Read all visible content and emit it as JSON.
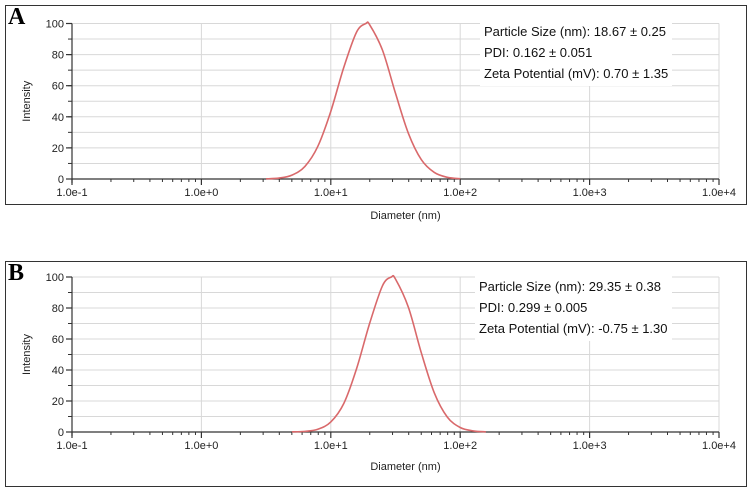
{
  "chart_data": [
    {
      "type": "line",
      "panel_label": "A",
      "xlabel": "Diameter (nm)",
      "ylabel": "Intensity",
      "xscale": "log",
      "xlim": [
        0.1,
        10000
      ],
      "ylim": [
        0,
        100
      ],
      "xticks": [
        "1.0e-1",
        "1.0e+0",
        "1.0e+1",
        "1.0e+2",
        "1.0e+3",
        "1.0e+4"
      ],
      "yticks": [
        "0",
        "20",
        "40",
        "60",
        "80",
        "100"
      ],
      "grid": true,
      "line_color": "#d9696b",
      "annotations": [
        "Particle Size (nm): 18.67 ± 0.25",
        "PDI: 0.162 ± 0.051",
        "Zeta Potential (mV): 0.70 ± 1.35"
      ],
      "series": [
        {
          "x": [
            3.16,
            3.98,
            5.01,
            6.31,
            7.94,
            10,
            12.6,
            15.8,
            18.67,
            20,
            25.1,
            31.6,
            39.8,
            50.1,
            63.1,
            79.4,
            100
          ],
          "y": [
            0.1,
            0.6,
            2.5,
            8.1,
            21.0,
            43.5,
            71.8,
            94.4,
            100,
            99.1,
            82.8,
            55.2,
            29.3,
            12.4,
            4.2,
            1.1,
            0.2
          ]
        }
      ]
    },
    {
      "type": "line",
      "panel_label": "B",
      "xlabel": "Diameter (nm)",
      "ylabel": "Intensity",
      "xscale": "log",
      "xlim": [
        0.1,
        10000
      ],
      "ylim": [
        0,
        100
      ],
      "xticks": [
        "1.0e-1",
        "1.0e+0",
        "1.0e+1",
        "1.0e+2",
        "1.0e+3",
        "1.0e+4"
      ],
      "yticks": [
        "0",
        "20",
        "40",
        "60",
        "80",
        "100"
      ],
      "grid": true,
      "line_color": "#d9696b",
      "annotations": [
        "Particle Size (nm): 29.35 ± 0.38",
        "PDI: 0.299 ± 0.005",
        "Zeta Potential (mV): -0.75 ± 1.30"
      ],
      "series": [
        {
          "x": [
            5.01,
            6.31,
            7.94,
            10,
            12.6,
            15.8,
            20,
            25.1,
            29.35,
            31.6,
            39.8,
            50.1,
            63.1,
            79.4,
            100,
            126,
            158
          ],
          "y": [
            0.1,
            0.4,
            1.8,
            6.5,
            18.4,
            40.7,
            70.3,
            94.4,
            100,
            98.7,
            80.4,
            51.0,
            25.2,
            9.7,
            2.9,
            0.7,
            0.1
          ]
        }
      ]
    }
  ]
}
